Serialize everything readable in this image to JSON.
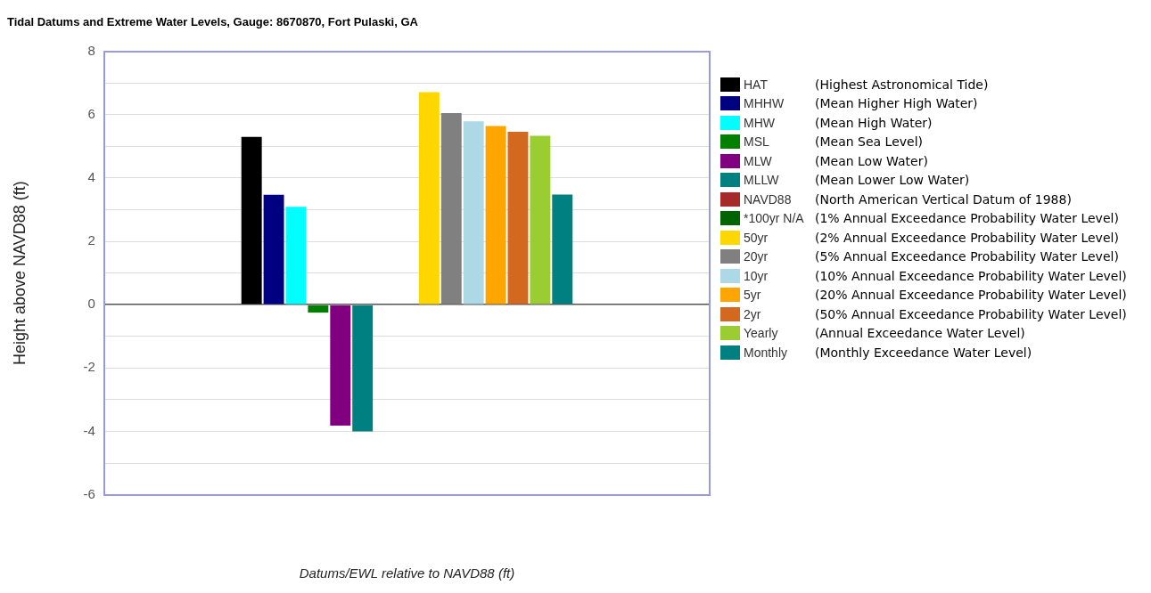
{
  "chart_data": {
    "type": "bar",
    "title": "Tidal Datums and Extreme Water Levels, Gauge: 8670870, Fort Pulaski, GA",
    "xlabel": "Datums/EWL relative to NAVD88 (ft)",
    "ylabel": "Height above NAVD88 (ft)",
    "categories": [
      null
    ],
    "series": [
      {
        "name": "HAT",
        "color": "#000000",
        "values": [
          5.3
        ]
      },
      {
        "name": "MHHW",
        "color": "#000080",
        "values": [
          3.47
        ]
      },
      {
        "name": "MHW",
        "color": "#00ffff",
        "values": [
          3.09
        ]
      },
      {
        "name": "MSL",
        "color": "#008000",
        "values": [
          -0.25
        ]
      },
      {
        "name": "MLW",
        "color": "#800080",
        "values": [
          -3.82
        ]
      },
      {
        "name": "MLLW",
        "color": "#008080",
        "values": [
          -4.0
        ]
      },
      {
        "name": "NAVD88",
        "color": "#a52a2a",
        "values": [
          0
        ]
      },
      {
        "name": "*100yr N/A",
        "color": "#006400",
        "values": [
          null
        ]
      },
      {
        "name": "50yr",
        "color": "#ffd700",
        "values": [
          6.71
        ]
      },
      {
        "name": "20yr",
        "color": "#808080",
        "values": [
          6.05
        ]
      },
      {
        "name": "10yr",
        "color": "#add8e6",
        "values": [
          5.79
        ]
      },
      {
        "name": "5yr",
        "color": "#ffa500",
        "values": [
          5.64
        ]
      },
      {
        "name": "2yr",
        "color": "#d2691e",
        "values": [
          5.46
        ]
      },
      {
        "name": "Yearly",
        "color": "#9acd32",
        "values": [
          5.33
        ]
      },
      {
        "name": "Monthly",
        "color": "#008080",
        "values": [
          3.48
        ]
      }
    ],
    "annotations": [
      "(Highest Astronomical Tide)",
      "(Mean Higher High Water)",
      "(Mean High Water)",
      "(Mean Sea Level)",
      "(Mean Low Water)",
      "(Mean Lower Low Water)",
      "(North American Vertical Datum of 1988)",
      "(1% Annual Exceedance Probability Water Level)",
      "(2% Annual Exceedance Probability Water Level)",
      "(5% Annual Exceedance Probability Water Level)",
      "(10% Annual Exceedance Probability Water Level)",
      "(20% Annual Exceedance Probability Water Level)",
      "(50% Annual Exceedance Probability Water Level)",
      "(Annual Exceedance Water Level)",
      "(Monthly Exceedance Water Level)"
    ],
    "ylim": [
      -6,
      8
    ],
    "yticks": [
      -6,
      {
        "value": -5,
        "label": null
      },
      -4,
      {
        "value": -3,
        "label": null
      },
      -2,
      {
        "value": -1,
        "label": null
      },
      0,
      {
        "value": 1,
        "label": null
      },
      2,
      {
        "value": 3,
        "label": null
      },
      4,
      {
        "value": 5,
        "label": null
      },
      6,
      {
        "value": 7,
        "label": null
      },
      8
    ],
    "grid": "y",
    "legend": "right"
  }
}
